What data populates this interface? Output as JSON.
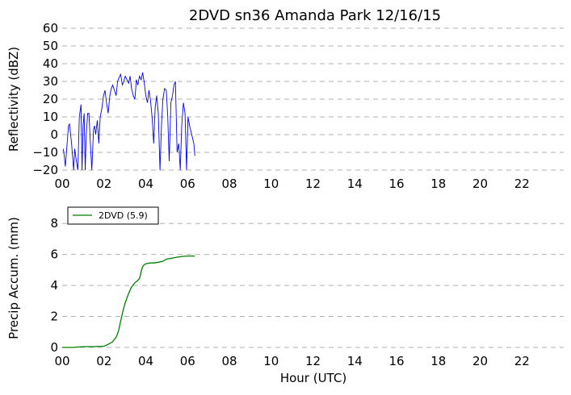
{
  "chart_data": [
    {
      "type": "line",
      "title": "2DVD sn36 Amanda Park 12/16/15",
      "ylabel": "Reflectivity (dBZ)",
      "xlabel": "",
      "xlim": [
        0,
        24
      ],
      "ylim": [
        -20,
        60
      ],
      "x_ticks": [
        0,
        2,
        4,
        6,
        8,
        10,
        12,
        14,
        16,
        18,
        20,
        22
      ],
      "x_tick_labels": [
        "00",
        "02",
        "04",
        "06",
        "08",
        "10",
        "12",
        "14",
        "16",
        "18",
        "20",
        "22"
      ],
      "y_ticks": [
        -20,
        -10,
        0,
        10,
        20,
        30,
        40,
        50,
        60
      ],
      "y_tick_labels": [
        "−20",
        "−10",
        "0",
        "10",
        "20",
        "30",
        "40",
        "50",
        "60"
      ],
      "grid": "horizontal-dashed",
      "color": "#0000ff",
      "series": [
        {
          "x": [
            0.05,
            0.1,
            0.15,
            0.3,
            0.35,
            0.45,
            0.55,
            0.6,
            0.68,
            0.75,
            0.82,
            0.9,
            0.95,
            1.0,
            1.05,
            1.1,
            1.15,
            1.22,
            1.28,
            1.35,
            1.42,
            1.5,
            1.55,
            1.6,
            1.68,
            1.75,
            1.82,
            1.9,
            1.98,
            2.05,
            2.12,
            2.2,
            2.28,
            2.35,
            2.42,
            2.5,
            2.58,
            2.65,
            2.72,
            2.8,
            2.88,
            2.95,
            3.02,
            3.1,
            3.18,
            3.25,
            3.32,
            3.4,
            3.48,
            3.55,
            3.62,
            3.7,
            3.78,
            3.85,
            3.92,
            4.0,
            4.08,
            4.15,
            4.22,
            4.3,
            4.38,
            4.45,
            4.52,
            4.6,
            4.68,
            4.75,
            4.82,
            4.9,
            4.98,
            5.05,
            5.12,
            5.2,
            5.28,
            5.35,
            5.42,
            5.5,
            5.58,
            5.65,
            5.72,
            5.8,
            5.88,
            5.95,
            6.02,
            6.1,
            6.3,
            6.35
          ],
          "y": [
            -8,
            -12,
            -18,
            5,
            6,
            -5,
            -20,
            -8,
            -15,
            -20,
            10,
            17,
            -20,
            5,
            12,
            -20,
            0,
            12,
            12,
            -5,
            -20,
            3,
            5,
            0,
            8,
            -5,
            10,
            15,
            22,
            25,
            18,
            12,
            22,
            26,
            28,
            25,
            22,
            30,
            32,
            34,
            28,
            30,
            33,
            31,
            29,
            33,
            26,
            22,
            20,
            31,
            28,
            33,
            31,
            35,
            30,
            22,
            18,
            25,
            20,
            10,
            -5,
            15,
            22,
            12,
            -20,
            5,
            20,
            26,
            25,
            10,
            -15,
            18,
            22,
            28,
            30,
            -10,
            -5,
            -20,
            5,
            18,
            12,
            -20,
            10,
            5,
            -5,
            -12
          ]
        }
      ]
    },
    {
      "type": "line",
      "title": "",
      "ylabel": "Precip Accum. (mm)",
      "xlabel": "Hour (UTC)",
      "xlim": [
        0,
        24
      ],
      "ylim": [
        0,
        9
      ],
      "x_ticks": [
        0,
        2,
        4,
        6,
        8,
        10,
        12,
        14,
        16,
        18,
        20,
        22
      ],
      "x_tick_labels": [
        "00",
        "02",
        "04",
        "06",
        "08",
        "10",
        "12",
        "14",
        "16",
        "18",
        "20",
        "22"
      ],
      "y_ticks": [
        0,
        2,
        4,
        6,
        8
      ],
      "y_tick_labels": [
        "0",
        "2",
        "4",
        "6",
        "8"
      ],
      "grid": "horizontal-dashed",
      "legend": "top-left",
      "series": [
        {
          "name": "2DVD (5.9)",
          "color": "#008000",
          "x": [
            0.0,
            0.5,
            1.0,
            1.5,
            2.0,
            2.2,
            2.4,
            2.6,
            2.7,
            2.8,
            2.9,
            3.0,
            3.1,
            3.2,
            3.3,
            3.4,
            3.5,
            3.6,
            3.7,
            3.75,
            3.8,
            3.85,
            3.9,
            4.0,
            4.2,
            4.4,
            4.6,
            4.8,
            5.0,
            5.2,
            5.4,
            5.6,
            5.8,
            6.0,
            6.2,
            6.35
          ],
          "y": [
            0.0,
            0.0,
            0.05,
            0.05,
            0.08,
            0.2,
            0.35,
            0.7,
            1.1,
            1.7,
            2.3,
            2.8,
            3.2,
            3.55,
            3.85,
            4.05,
            4.2,
            4.3,
            4.45,
            4.7,
            5.0,
            5.2,
            5.3,
            5.4,
            5.45,
            5.45,
            5.5,
            5.55,
            5.7,
            5.75,
            5.8,
            5.85,
            5.88,
            5.9,
            5.9,
            5.9
          ]
        }
      ]
    }
  ]
}
